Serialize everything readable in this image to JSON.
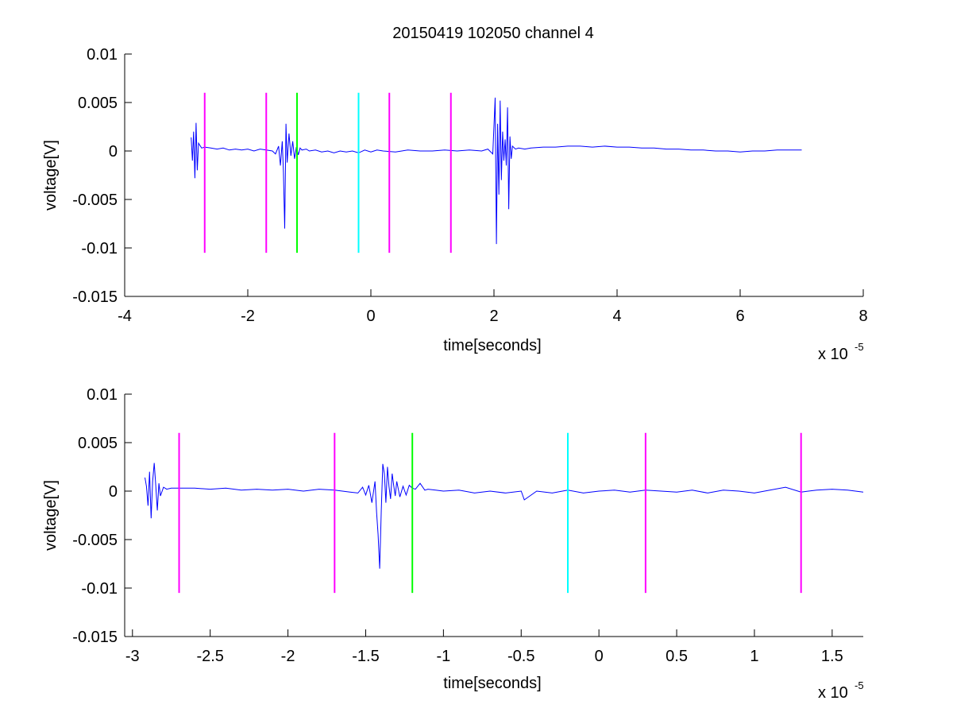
{
  "chart_data": [
    {
      "type": "line",
      "title": "20150419 102050 channel 4",
      "xlabel": "time[seconds]",
      "ylabel": "voltage[V]",
      "x_multiplier_text": "x 10",
      "x_multiplier_exp": "-5",
      "xlim": [
        -4,
        8
      ],
      "ylim": [
        -0.015,
        0.01
      ],
      "xticks": [
        -4,
        -2,
        0,
        2,
        4,
        6,
        8
      ],
      "xtick_labels": [
        "-4",
        "-2",
        "0",
        "2",
        "4",
        "6",
        "8"
      ],
      "yticks": [
        0.01,
        0.005,
        0,
        -0.005,
        -0.01,
        -0.015
      ],
      "ytick_labels": [
        "0.01",
        "0.005",
        "0",
        "-0.005",
        "-0.01",
        "-0.015"
      ],
      "grid": false,
      "series": [
        {
          "color": "#0000ff",
          "x": [
            -2.92,
            -2.9,
            -2.88,
            -2.86,
            -2.84,
            -2.82,
            -2.8,
            -2.75,
            -2.7,
            -2.6,
            -2.5,
            -2.4,
            -2.3,
            -2.2,
            -2.1,
            -2.0,
            -1.9,
            -1.8,
            -1.7,
            -1.6,
            -1.55,
            -1.5,
            -1.47,
            -1.44,
            -1.42,
            -1.4,
            -1.38,
            -1.36,
            -1.33,
            -1.3,
            -1.27,
            -1.24,
            -1.21,
            -1.18,
            -1.15,
            -1.12,
            -1.05,
            -1.0,
            -0.9,
            -0.8,
            -0.7,
            -0.6,
            -0.5,
            -0.4,
            -0.3,
            -0.2,
            -0.1,
            0.0,
            0.1,
            0.2,
            0.4,
            0.6,
            0.8,
            1.0,
            1.2,
            1.4,
            1.6,
            1.8,
            1.9,
            1.98,
            2.02,
            2.04,
            2.06,
            2.08,
            2.1,
            2.12,
            2.14,
            2.16,
            2.18,
            2.2,
            2.22,
            2.24,
            2.26,
            2.28,
            2.3,
            2.35,
            2.4,
            2.5,
            2.6,
            2.8,
            3.0,
            3.2,
            3.4,
            3.6,
            3.8,
            4.0,
            4.2,
            4.4,
            4.6,
            4.8,
            5.0,
            5.2,
            5.4,
            5.6,
            5.8,
            6.0,
            6.2,
            6.4,
            6.6,
            6.8,
            7.0
          ],
          "y": [
            0.0014,
            -0.001,
            0.002,
            -0.0028,
            0.0029,
            -0.002,
            0.0008,
            0.0003,
            0.0004,
            0.0003,
            0.0002,
            0.0003,
            0.0001,
            0.0002,
            0.0001,
            0.0002,
            0.0,
            0.0002,
            0.0001,
            0.0,
            -0.0003,
            0.0005,
            -0.0015,
            0.001,
            -0.0022,
            -0.008,
            0.0028,
            -0.0012,
            0.0018,
            -0.0005,
            0.001,
            -0.0008,
            0.0004,
            -0.0004,
            0.0003,
            0.0001,
            0.0002,
            0.0,
            0.0001,
            -0.0001,
            0.0,
            -0.0002,
            0.0,
            -0.0001,
            0.0,
            -0.0002,
            0.0001,
            -0.0001,
            0.0001,
            0.0,
            -0.0001,
            0.0001,
            0.0,
            0.0,
            0.0001,
            0.0,
            0.0001,
            0.0,
            0.0002,
            -0.0003,
            0.0055,
            -0.0096,
            0.0028,
            -0.0045,
            0.0052,
            -0.003,
            0.002,
            -0.001,
            0.0012,
            -0.0015,
            0.0045,
            -0.006,
            0.0015,
            -0.0008,
            0.0005,
            0.0002,
            0.0003,
            0.0002,
            0.0003,
            0.0004,
            0.0004,
            0.0005,
            0.0005,
            0.0004,
            0.0005,
            0.0004,
            0.0004,
            0.0003,
            0.0003,
            0.0002,
            0.0002,
            0.0001,
            0.0001,
            0.0,
            0.0,
            -0.0001,
            0.0,
            0.0,
            0.0001,
            0.0001,
            0.0001
          ]
        }
      ],
      "markers": [
        {
          "x": -2.7,
          "color": "#ff00ff"
        },
        {
          "x": -1.7,
          "color": "#ff00ff"
        },
        {
          "x": -1.2,
          "color": "#00ff00"
        },
        {
          "x": -0.2,
          "color": "#00ffff"
        },
        {
          "x": 0.3,
          "color": "#ff00ff"
        },
        {
          "x": 1.3,
          "color": "#ff00ff"
        }
      ],
      "marker_ylim": [
        -0.0105,
        0.006
      ]
    },
    {
      "type": "line",
      "xlabel": "time[seconds]",
      "ylabel": "voltage[V]",
      "x_multiplier_text": "x 10",
      "x_multiplier_exp": "-5",
      "xlim": [
        -3.05,
        1.7
      ],
      "ylim": [
        -0.015,
        0.01
      ],
      "xticks": [
        -3,
        -2.5,
        -2,
        -1.5,
        -1,
        -0.5,
        0,
        0.5,
        1,
        1.5
      ],
      "xtick_labels": [
        "-3",
        "-2.5",
        "-2",
        "-1.5",
        "-1",
        "-0.5",
        "0",
        "0.5",
        "1",
        "1.5"
      ],
      "yticks": [
        0.01,
        0.005,
        0,
        -0.005,
        -0.01,
        -0.015
      ],
      "ytick_labels": [
        "0.01",
        "0.005",
        "0",
        "-0.005",
        "-0.01",
        "-0.015"
      ],
      "grid": false,
      "series": [
        {
          "color": "#0000ff",
          "x": [
            -2.92,
            -2.91,
            -2.9,
            -2.89,
            -2.88,
            -2.87,
            -2.86,
            -2.85,
            -2.84,
            -2.83,
            -2.82,
            -2.8,
            -2.78,
            -2.75,
            -2.7,
            -2.6,
            -2.5,
            -2.4,
            -2.3,
            -2.2,
            -2.1,
            -2.0,
            -1.9,
            -1.8,
            -1.7,
            -1.65,
            -1.6,
            -1.55,
            -1.52,
            -1.5,
            -1.48,
            -1.46,
            -1.44,
            -1.43,
            -1.42,
            -1.41,
            -1.4,
            -1.39,
            -1.38,
            -1.37,
            -1.36,
            -1.35,
            -1.34,
            -1.33,
            -1.32,
            -1.31,
            -1.3,
            -1.28,
            -1.26,
            -1.24,
            -1.22,
            -1.2,
            -1.18,
            -1.15,
            -1.12,
            -1.1,
            -1.05,
            -1.0,
            -0.9,
            -0.8,
            -0.7,
            -0.6,
            -0.5,
            -0.48,
            -0.4,
            -0.3,
            -0.2,
            -0.1,
            0.0,
            0.1,
            0.2,
            0.3,
            0.4,
            0.5,
            0.6,
            0.7,
            0.8,
            0.9,
            1.0,
            1.1,
            1.2,
            1.3,
            1.4,
            1.5,
            1.6,
            1.7
          ],
          "y": [
            0.0014,
            0.0005,
            -0.0015,
            0.002,
            -0.0028,
            0.001,
            0.0029,
            0.0005,
            -0.002,
            0.0008,
            -0.0005,
            0.0004,
            0.0002,
            0.0003,
            0.0003,
            0.0003,
            0.0002,
            0.0003,
            0.0001,
            0.0002,
            0.0001,
            0.0002,
            0.0,
            0.0002,
            0.0001,
            0.0,
            -0.0001,
            -0.0002,
            0.0004,
            -0.0004,
            0.0006,
            -0.0012,
            0.001,
            -0.0022,
            -0.0045,
            -0.008,
            -0.002,
            0.0028,
            0.0018,
            -0.0012,
            0.0025,
            0.0005,
            -0.0008,
            0.0018,
            0.0006,
            -0.0005,
            0.001,
            -0.0006,
            0.0005,
            -0.0004,
            0.0006,
            0.0003,
            0.0002,
            0.0008,
            0.0001,
            0.0002,
            0.0001,
            0.0,
            0.0001,
            -0.0002,
            0.0,
            -0.0002,
            0.0,
            -0.0009,
            0.0,
            -0.0002,
            0.0001,
            -0.0002,
            0.0,
            0.0001,
            -0.0001,
            0.0001,
            0.0,
            -0.0001,
            0.0001,
            -0.0002,
            0.0001,
            0.0,
            -0.0002,
            0.0001,
            0.0004,
            -0.0001,
            0.0001,
            0.0002,
            0.0001,
            -0.0001
          ]
        }
      ],
      "markers": [
        {
          "x": -2.7,
          "color": "#ff00ff"
        },
        {
          "x": -1.7,
          "color": "#ff00ff"
        },
        {
          "x": -1.2,
          "color": "#00ff00"
        },
        {
          "x": -0.2,
          "color": "#00ffff"
        },
        {
          "x": 0.3,
          "color": "#ff00ff"
        },
        {
          "x": 1.3,
          "color": "#ff00ff"
        }
      ],
      "marker_ylim": [
        -0.0105,
        0.006
      ]
    }
  ]
}
